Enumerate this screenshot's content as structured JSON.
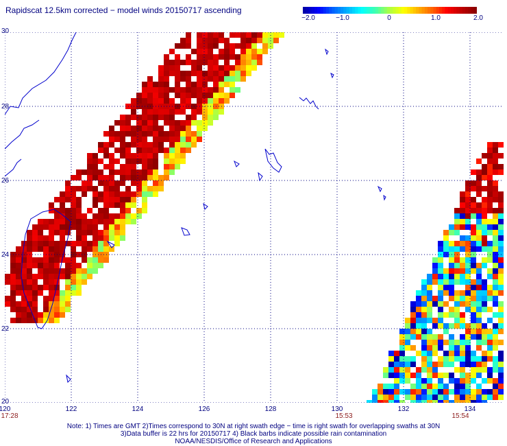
{
  "title": "Rapidscat 12.5km corrected − model winds 20150717 ascending",
  "colorbar": {
    "ticks": [
      "−2.0",
      "−1.0",
      "0",
      "1.0",
      "2.0"
    ],
    "colors": [
      "#0000aa",
      "#0000ff",
      "#0060ff",
      "#00b0ff",
      "#00ffff",
      "#40ffb0",
      "#b0ff40",
      "#ffff00",
      "#ffb000",
      "#ff6000",
      "#ff0000",
      "#c00000",
      "#8b0000"
    ]
  },
  "axes": {
    "lat_labels": [
      "30",
      "28",
      "26",
      "24",
      "22",
      "20"
    ],
    "lon_labels": [
      "120",
      "122",
      "124",
      "126",
      "128",
      "130",
      "132",
      "134"
    ]
  },
  "times": [
    "17:28",
    "15:53",
    "15:54"
  ],
  "notes": [
    "Note: 1) Times are GMT 2)Times correspond to 30N at right swath edge − time is right swath for overlapping swaths at 30N",
    "3)Data buffer is 22 hrs for 20150717 4) Black barbs indicate possible rain contamination",
    "NOAA/NESDIS/Office of Research and Applications"
  ]
}
